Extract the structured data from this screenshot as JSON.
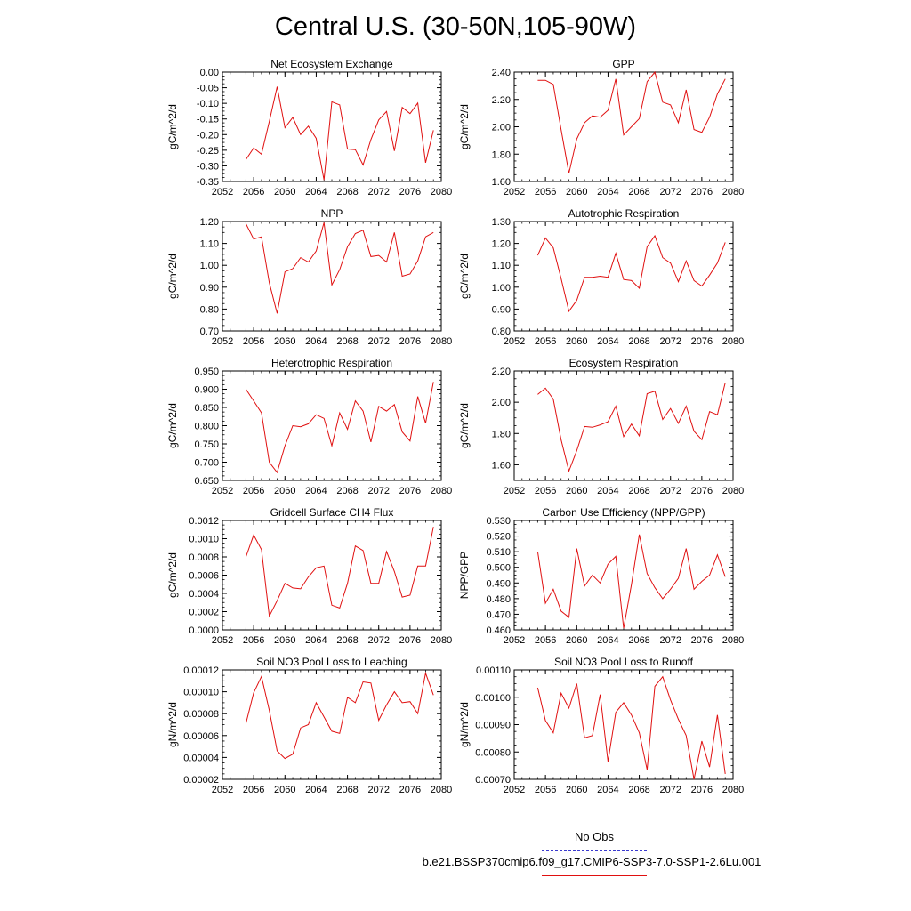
{
  "title": "Central U.S. (30-50N,105-90W)",
  "series_color": "#e01010",
  "obs_color": "#3b3bcf",
  "legend": {
    "obs_label": "No Obs",
    "case_label": "b.e21.BSSP370cmip6.f09_g17.CMIP6-SSP3-7.0-SSP1-2.6Lu.001"
  },
  "chart_data": [
    {
      "type": "line",
      "title": "Net Ecosystem Exchange",
      "ylabel": "gC/m^2/d",
      "xlim": [
        2052,
        2080
      ],
      "ylim": [
        -0.35,
        0.0
      ],
      "x_ticks": [
        "2052",
        "2056",
        "2060",
        "2064",
        "2068",
        "2072",
        "2076",
        "2080"
      ],
      "y_ticks": [
        "0.00",
        "-0.05",
        "-0.10",
        "-0.15",
        "-0.20",
        "-0.25",
        "-0.30",
        "-0.35"
      ],
      "x": [
        2055,
        2056,
        2057,
        2058,
        2059,
        2060,
        2061,
        2062,
        2063,
        2064,
        2065,
        2066,
        2067,
        2068,
        2069,
        2070,
        2071,
        2072,
        2073,
        2074,
        2075,
        2076,
        2077,
        2078,
        2079
      ],
      "values": [
        -0.28,
        -0.243,
        -0.263,
        -0.158,
        -0.047,
        -0.178,
        -0.145,
        -0.2,
        -0.173,
        -0.212,
        -0.345,
        -0.095,
        -0.105,
        -0.246,
        -0.248,
        -0.297,
        -0.216,
        -0.153,
        -0.126,
        -0.252,
        -0.113,
        -0.133,
        -0.099,
        -0.29,
        -0.186
      ]
    },
    {
      "type": "line",
      "title": "GPP",
      "ylabel": "gC/m^2/d",
      "xlim": [
        2052,
        2080
      ],
      "ylim": [
        1.6,
        2.4
      ],
      "x_ticks": [
        "2052",
        "2056",
        "2060",
        "2064",
        "2068",
        "2072",
        "2076",
        "2080"
      ],
      "y_ticks": [
        "2.40",
        "2.20",
        "2.00",
        "1.80",
        "1.60"
      ],
      "x": [
        2055,
        2056,
        2057,
        2058,
        2059,
        2060,
        2061,
        2062,
        2063,
        2064,
        2065,
        2066,
        2067,
        2068,
        2069,
        2070,
        2071,
        2072,
        2073,
        2074,
        2075,
        2076,
        2077,
        2078,
        2079
      ],
      "values": [
        2.34,
        2.34,
        2.31,
        1.98,
        1.66,
        1.91,
        2.03,
        2.08,
        2.07,
        2.12,
        2.35,
        1.94,
        2.0,
        2.06,
        2.33,
        2.4,
        2.18,
        2.16,
        2.03,
        2.27,
        1.98,
        1.96,
        2.07,
        2.24,
        2.35
      ]
    },
    {
      "type": "line",
      "title": "NPP",
      "ylabel": "gC/m^2/d",
      "xlim": [
        2052,
        2080
      ],
      "ylim": [
        0.7,
        1.2
      ],
      "x_ticks": [
        "2052",
        "2056",
        "2060",
        "2064",
        "2068",
        "2072",
        "2076",
        "2080"
      ],
      "y_ticks": [
        "1.20",
        "1.10",
        "1.00",
        "0.90",
        "0.80",
        "0.70"
      ],
      "x": [
        2055,
        2056,
        2057,
        2058,
        2059,
        2060,
        2061,
        2062,
        2063,
        2064,
        2065,
        2066,
        2067,
        2068,
        2069,
        2070,
        2071,
        2072,
        2073,
        2074,
        2075,
        2076,
        2077,
        2078,
        2079
      ],
      "values": [
        1.19,
        1.12,
        1.13,
        0.92,
        0.78,
        0.97,
        0.985,
        1.035,
        1.015,
        1.065,
        1.195,
        0.91,
        0.98,
        1.085,
        1.145,
        1.16,
        1.04,
        1.045,
        1.015,
        1.15,
        0.95,
        0.96,
        1.02,
        1.13,
        1.15
      ]
    },
    {
      "type": "line",
      "title": "Autotrophic Respiration",
      "ylabel": "gC/m^2/d",
      "xlim": [
        2052,
        2080
      ],
      "ylim": [
        0.8,
        1.3
      ],
      "x_ticks": [
        "2052",
        "2056",
        "2060",
        "2064",
        "2068",
        "2072",
        "2076",
        "2080"
      ],
      "y_ticks": [
        "1.30",
        "1.20",
        "1.10",
        "1.00",
        "0.90",
        "0.80"
      ],
      "x": [
        2055,
        2056,
        2057,
        2058,
        2059,
        2060,
        2061,
        2062,
        2063,
        2064,
        2065,
        2066,
        2067,
        2068,
        2069,
        2070,
        2071,
        2072,
        2073,
        2074,
        2075,
        2076,
        2077,
        2078,
        2079
      ],
      "values": [
        1.145,
        1.225,
        1.18,
        1.04,
        0.89,
        0.94,
        1.045,
        1.045,
        1.05,
        1.045,
        1.155,
        1.035,
        1.03,
        0.995,
        1.185,
        1.235,
        1.135,
        1.11,
        1.025,
        1.12,
        1.03,
        1.005,
        1.055,
        1.11,
        1.205
      ]
    },
    {
      "type": "line",
      "title": "Heterotrophic Respiration",
      "ylabel": "gC/m^2/d",
      "xlim": [
        2052,
        2080
      ],
      "ylim": [
        0.65,
        0.95
      ],
      "x_ticks": [
        "2052",
        "2056",
        "2060",
        "2064",
        "2068",
        "2072",
        "2076",
        "2080"
      ],
      "y_ticks": [
        "0.950",
        "0.900",
        "0.850",
        "0.800",
        "0.750",
        "0.700",
        "0.650"
      ],
      "x": [
        2055,
        2056,
        2057,
        2058,
        2059,
        2060,
        2061,
        2062,
        2063,
        2064,
        2065,
        2066,
        2067,
        2068,
        2069,
        2070,
        2071,
        2072,
        2073,
        2074,
        2075,
        2076,
        2077,
        2078,
        2079
      ],
      "values": [
        0.9,
        0.868,
        0.835,
        0.7,
        0.672,
        0.745,
        0.8,
        0.797,
        0.805,
        0.83,
        0.82,
        0.745,
        0.835,
        0.79,
        0.868,
        0.84,
        0.755,
        0.853,
        0.84,
        0.858,
        0.783,
        0.758,
        0.88,
        0.807,
        0.92
      ]
    },
    {
      "type": "line",
      "title": "Ecosystem Respiration",
      "ylabel": "gC/m^2/d",
      "xlim": [
        2052,
        2080
      ],
      "ylim": [
        1.5,
        2.2
      ],
      "x_ticks": [
        "2052",
        "2056",
        "2060",
        "2064",
        "2068",
        "2072",
        "2076",
        "2080"
      ],
      "y_ticks": [
        "2.20",
        "2.00",
        "1.80",
        "1.60"
      ],
      "x": [
        2055,
        2056,
        2057,
        2058,
        2059,
        2060,
        2061,
        2062,
        2063,
        2064,
        2065,
        2066,
        2067,
        2068,
        2069,
        2070,
        2071,
        2072,
        2073,
        2074,
        2075,
        2076,
        2077,
        2078,
        2079
      ],
      "values": [
        2.05,
        2.09,
        2.02,
        1.76,
        1.56,
        1.69,
        1.845,
        1.84,
        1.855,
        1.875,
        1.975,
        1.78,
        1.86,
        1.785,
        2.055,
        2.07,
        1.89,
        1.96,
        1.865,
        1.975,
        1.815,
        1.76,
        1.94,
        1.92,
        2.125
      ]
    },
    {
      "type": "line",
      "title": "Gridcell Surface CH4 Flux",
      "ylabel": "gC/m^2/d",
      "xlim": [
        2052,
        2080
      ],
      "ylim": [
        0.0,
        0.0012
      ],
      "x_ticks": [
        "2052",
        "2056",
        "2060",
        "2064",
        "2068",
        "2072",
        "2076",
        "2080"
      ],
      "y_ticks": [
        "0.0012",
        "0.0010",
        "0.0008",
        "0.0006",
        "0.0004",
        "0.0002",
        "0.0000"
      ],
      "x": [
        2055,
        2056,
        2057,
        2058,
        2059,
        2060,
        2061,
        2062,
        2063,
        2064,
        2065,
        2066,
        2067,
        2068,
        2069,
        2070,
        2071,
        2072,
        2073,
        2074,
        2075,
        2076,
        2077,
        2078,
        2079
      ],
      "values": [
        0.0008,
        0.00104,
        0.00088,
        0.00015,
        0.00032,
        0.00051,
        0.00046,
        0.00045,
        0.00058,
        0.00068,
        0.0007,
        0.00027,
        0.00024,
        0.00051,
        0.00092,
        0.00087,
        0.00051,
        0.00051,
        0.00086,
        0.00064,
        0.00036,
        0.00038,
        0.0007,
        0.0007,
        0.00113
      ]
    },
    {
      "type": "line",
      "title": "Carbon Use Efficiency (NPP/GPP)",
      "ylabel": "NPP/GPP",
      "xlim": [
        2052,
        2080
      ],
      "ylim": [
        0.46,
        0.53
      ],
      "x_ticks": [
        "2052",
        "2056",
        "2060",
        "2064",
        "2068",
        "2072",
        "2076",
        "2080"
      ],
      "y_ticks": [
        "0.530",
        "0.520",
        "0.510",
        "0.500",
        "0.490",
        "0.480",
        "0.470",
        "0.460"
      ],
      "x": [
        2055,
        2056,
        2057,
        2058,
        2059,
        2060,
        2061,
        2062,
        2063,
        2064,
        2065,
        2066,
        2067,
        2068,
        2069,
        2070,
        2071,
        2072,
        2073,
        2074,
        2075,
        2076,
        2077,
        2078,
        2079
      ],
      "values": [
        0.51,
        0.477,
        0.486,
        0.472,
        0.468,
        0.512,
        0.488,
        0.495,
        0.49,
        0.502,
        0.507,
        0.461,
        0.489,
        0.521,
        0.496,
        0.487,
        0.48,
        0.486,
        0.493,
        0.512,
        0.486,
        0.491,
        0.495,
        0.508,
        0.494
      ]
    },
    {
      "type": "line",
      "title": "Soil NO3 Pool Loss to Leaching",
      "ylabel": "gN/m^2/d",
      "xlim": [
        2052,
        2080
      ],
      "ylim": [
        2e-05,
        0.00012
      ],
      "x_ticks": [
        "2052",
        "2056",
        "2060",
        "2064",
        "2068",
        "2072",
        "2076",
        "2080"
      ],
      "y_ticks": [
        "0.00012",
        "0.00010",
        "0.00008",
        "0.00006",
        "0.00004",
        "0.00002"
      ],
      "x": [
        2055,
        2056,
        2057,
        2058,
        2059,
        2060,
        2061,
        2062,
        2063,
        2064,
        2065,
        2066,
        2067,
        2068,
        2069,
        2070,
        2071,
        2072,
        2073,
        2074,
        2075,
        2076,
        2077,
        2078,
        2079
      ],
      "values": [
        7.1e-05,
        9.9e-05,
        0.000114,
        8.3e-05,
        4.6e-05,
        3.9e-05,
        4.3e-05,
        6.7e-05,
        7e-05,
        9e-05,
        7.7e-05,
        6.4e-05,
        6.2e-05,
        9.5e-05,
        9e-05,
        0.000109,
        0.000108,
        7.4e-05,
        8.8e-05,
        0.0001,
        9e-05,
        9.1e-05,
        8e-05,
        0.000117,
        9.7e-05
      ]
    },
    {
      "type": "line",
      "title": "Soil NO3 Pool Loss to Runoff",
      "ylabel": "gN/m^2/d",
      "xlim": [
        2052,
        2080
      ],
      "ylim": [
        0.0007,
        0.0011
      ],
      "x_ticks": [
        "2052",
        "2056",
        "2060",
        "2064",
        "2068",
        "2072",
        "2076",
        "2080"
      ],
      "y_ticks": [
        "0.00110",
        "0.00100",
        "0.00090",
        "0.00080",
        "0.00070"
      ],
      "x": [
        2055,
        2056,
        2057,
        2058,
        2059,
        2060,
        2061,
        2062,
        2063,
        2064,
        2065,
        2066,
        2067,
        2068,
        2069,
        2070,
        2071,
        2072,
        2073,
        2074,
        2075,
        2076,
        2077,
        2078,
        2079
      ],
      "values": [
        0.001035,
        0.000915,
        0.00087,
        0.001015,
        0.00096,
        0.00105,
        0.000852,
        0.00086,
        0.00101,
        0.000765,
        0.000945,
        0.00098,
        0.000935,
        0.00087,
        0.000735,
        0.00104,
        0.001075,
        0.00099,
        0.00092,
        0.00086,
        0.0007,
        0.00084,
        0.000745,
        0.000935,
        0.00072
      ]
    }
  ]
}
